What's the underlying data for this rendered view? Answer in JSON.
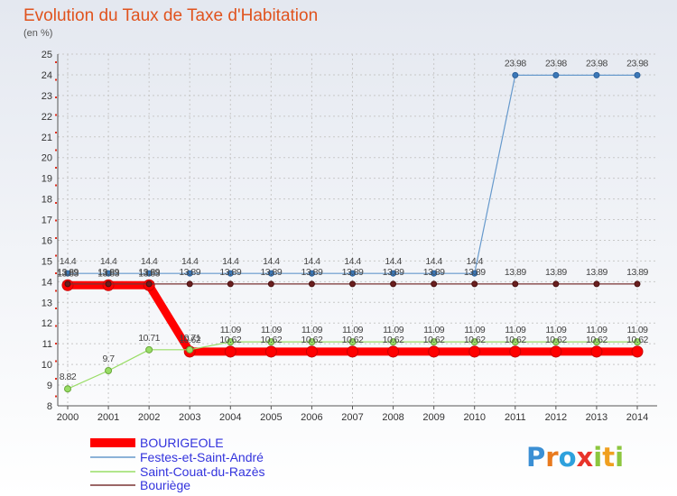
{
  "chart_data": {
    "type": "line",
    "title": "Evolution du Taux de Taxe d'Habitation",
    "unit_label": "(en %)",
    "x": [
      "2000",
      "2001",
      "2002",
      "2003",
      "2004",
      "2005",
      "2006",
      "2007",
      "2008",
      "2009",
      "2010",
      "2011",
      "2012",
      "2013",
      "2014"
    ],
    "ylim": [
      8,
      25
    ],
    "yticks": [
      8,
      9,
      10,
      11,
      12,
      13,
      14,
      15,
      16,
      17,
      18,
      19,
      20,
      21,
      22,
      23,
      24,
      25
    ],
    "grid": true,
    "legend_position": "bottom-left",
    "series": [
      {
        "name": "BOURIGEOLE",
        "color": "#ff0000",
        "values": [
          13.83,
          13.83,
          13.83,
          10.62,
          10.62,
          10.62,
          10.62,
          10.62,
          10.62,
          10.62,
          10.62,
          10.62,
          10.62,
          10.62,
          10.62
        ],
        "labels": [
          null,
          null,
          null,
          "10.62",
          "10.62",
          "10.62",
          "10.62",
          "10.62",
          "10.62",
          "10.62",
          "10.62",
          "10.62",
          "10.62",
          "10.62",
          "10.62"
        ]
      },
      {
        "name": "Festes-et-Saint-André",
        "color": "#6699cc",
        "values": [
          14.4,
          14.4,
          14.4,
          14.4,
          14.4,
          14.4,
          14.4,
          14.4,
          14.4,
          14.4,
          14.4,
          23.98,
          23.98,
          23.98,
          23.98
        ],
        "labels": [
          "14.4",
          "14.4",
          "14.4",
          "14.4",
          "14.4",
          "14.4",
          "14.4",
          "14.4",
          "14.4",
          "14.4",
          "14.4",
          "23.98",
          "23.98",
          "23.98",
          "23.98"
        ]
      },
      {
        "name": "Saint-Couat-du-Razès",
        "color": "#99dd66",
        "values": [
          8.82,
          9.7,
          10.71,
          10.71,
          11.09,
          11.09,
          11.09,
          11.09,
          11.09,
          11.09,
          11.09,
          11.09,
          11.09,
          11.09,
          11.09
        ],
        "labels": [
          "8.82",
          "9.7",
          "10.71",
          "10.71",
          "11.09",
          "11.09",
          "11.09",
          "11.09",
          "11.09",
          "11.09",
          "11.09",
          "11.09",
          "11.09",
          "11.09",
          "11.09"
        ]
      },
      {
        "name": "Bouriège",
        "color": "#7a3333",
        "values": [
          13.89,
          13.89,
          13.89,
          13.89,
          13.89,
          13.89,
          13.89,
          13.89,
          13.89,
          13.89,
          13.89,
          13.89,
          13.89,
          13.89,
          13.89
        ],
        "labels": [
          "13.89",
          "13.89",
          "13.89",
          "13.89",
          "13.89",
          "13.89",
          "13.89",
          "13.89",
          "13.89",
          "13.89",
          "13.89",
          "13.89",
          "13.89",
          "13.89",
          "13.89"
        ]
      }
    ],
    "bourigeole_early_label": "13.83"
  },
  "logo_text": "Proxiti"
}
